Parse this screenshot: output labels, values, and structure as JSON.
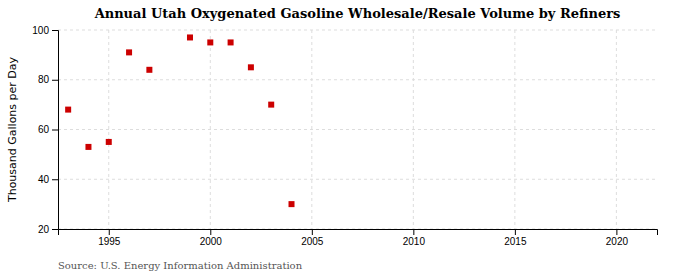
{
  "chart_data": {
    "type": "scatter",
    "title": "Annual Utah Oxygenated Gasoline Wholesale/Resale Volume by Refiners",
    "ylabel": "Thousand Gallons per Day",
    "annotations": [
      "Source: U.S. Energy Information Administration"
    ],
    "x": [
      1993,
      1994,
      1995,
      1996,
      1997,
      1999,
      2000,
      2001,
      2002,
      2003,
      2004
    ],
    "values": [
      68,
      53,
      55,
      91,
      84,
      97,
      95,
      95,
      85,
      70,
      30
    ],
    "color": "#cc0000",
    "marker": "square",
    "xlim": [
      1992.5,
      2022
    ],
    "ylim": [
      20,
      100
    ],
    "xticks": [
      1995,
      2000,
      2005,
      2010,
      2015,
      2020
    ],
    "yticks": [
      20,
      40,
      60,
      80,
      100
    ],
    "grid": true
  }
}
